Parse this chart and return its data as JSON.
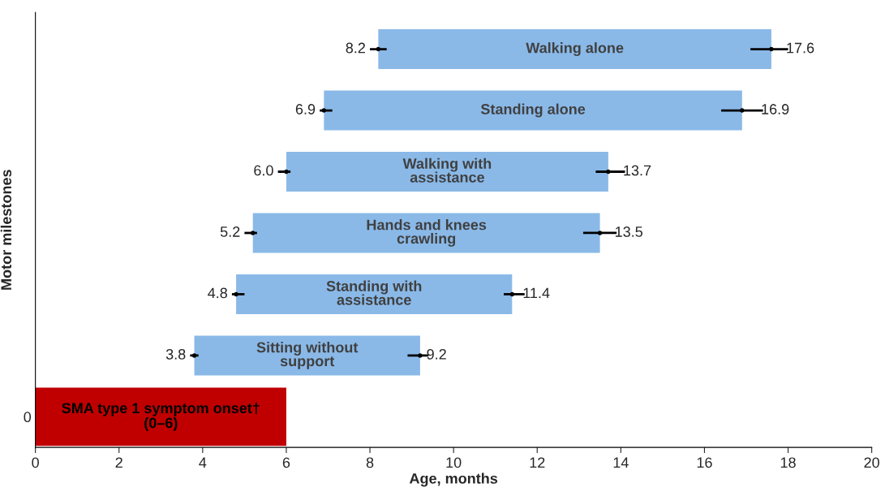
{
  "chart_data": {
    "type": "bar",
    "orientation": "horizontal",
    "xlabel": "Age, months",
    "ylabel": "Motor milestones",
    "categories": [
      "Walking alone",
      "Standing alone",
      "Walking with\nassistance",
      "Hands and knees\ncrawling",
      "Standing with\nassistance",
      "Sitting without\nsupport",
      "0"
    ],
    "xlim": [
      0,
      20
    ],
    "xticks": [
      0,
      2,
      4,
      6,
      8,
      10,
      12,
      14,
      16,
      18,
      20
    ],
    "series": [
      {
        "color": "#8ab9e8",
        "base": [
          8.2,
          6.9,
          6.0,
          5.2,
          4.8,
          3.8,
          null
        ],
        "values": [
          9.4,
          10.0,
          7.7,
          8.3,
          6.6,
          5.4,
          null
        ]
      },
      {
        "color": "#c00000",
        "base": [
          null,
          null,
          null,
          null,
          null,
          null,
          0
        ],
        "values": [
          null,
          null,
          null,
          null,
          null,
          null,
          6
        ]
      },
      {
        "type": "scatter",
        "color": "#000000",
        "values": [
          8.2,
          6.9,
          6.0,
          5.2,
          4.8,
          3.8,
          null
        ],
        "errors": [
          [
            8.0,
            8.4
          ],
          [
            6.8,
            7.1
          ],
          [
            5.8,
            6.1
          ],
          [
            5.0,
            5.3
          ],
          [
            4.7,
            5.0
          ],
          [
            3.7,
            3.9
          ],
          null
        ],
        "value_labels": [
          "8.2",
          "6.9",
          "6.0",
          "5.2",
          "4.8",
          "3.8",
          null
        ]
      },
      {
        "type": "scatter",
        "color": "#000000",
        "values": [
          17.6,
          16.9,
          13.7,
          13.5,
          11.4,
          9.2,
          null
        ],
        "errors": [
          [
            17.1,
            18.0
          ],
          [
            16.4,
            17.4
          ],
          [
            13.4,
            14.1
          ],
          [
            13.1,
            13.9
          ],
          [
            11.2,
            11.7
          ],
          [
            8.9,
            9.4
          ],
          null
        ],
        "value_labels": [
          "17.6",
          "16.9",
          "13.7",
          "13.5",
          "11.4",
          "9.2",
          null
        ]
      }
    ],
    "annotations": [
      "SMA type 1 symptom onset†\n(0–6)"
    ],
    "marker": "circle",
    "grid": false,
    "legend": false
  }
}
